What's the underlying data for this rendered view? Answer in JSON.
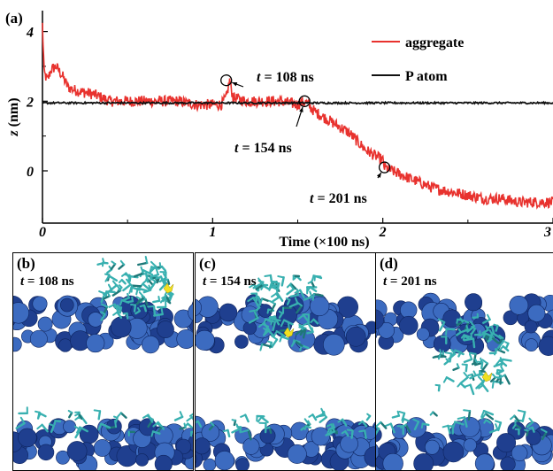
{
  "figure": {
    "panel_a_label": "(a)",
    "panels": [
      {
        "label": "(b)",
        "t_label": "t",
        "t_text": " = 108 ns"
      },
      {
        "label": "(c)",
        "t_label": "t",
        "t_text": " = 154 ns"
      },
      {
        "label": "(d)",
        "t_label": "t",
        "t_text": " = 201 ns"
      }
    ]
  },
  "chart_data": {
    "type": "line",
    "xlabel": "Time (×100 ns)",
    "ylabel_var": "z",
    "ylabel_unit": " (nm)",
    "xlim": [
      0,
      3
    ],
    "ylim": [
      -1.5,
      4.6
    ],
    "xticks": [
      0,
      1,
      2,
      3
    ],
    "yticks": [
      0,
      2,
      4
    ],
    "grid": false,
    "legend_position": "top-right",
    "series": [
      {
        "name": "aggregate",
        "color": "#e8322e",
        "x": [
          0,
          0.01,
          0.03,
          0.05,
          0.08,
          0.12,
          0.15,
          0.2,
          0.3,
          0.4,
          0.5,
          0.6,
          0.7,
          0.8,
          0.9,
          1.0,
          1.05,
          1.08,
          1.1,
          1.12,
          1.2,
          1.3,
          1.4,
          1.5,
          1.54,
          1.6,
          1.7,
          1.8,
          1.9,
          2.0,
          2.01,
          2.1,
          2.2,
          2.3,
          2.4,
          2.5,
          2.6,
          2.7,
          2.8,
          2.9,
          3.0
        ],
        "y": [
          4.2,
          2.8,
          2.6,
          2.9,
          3.0,
          2.7,
          2.4,
          2.3,
          2.2,
          2.0,
          2.0,
          2.0,
          2.0,
          2.0,
          1.9,
          1.9,
          1.9,
          2.1,
          2.6,
          2.1,
          2.0,
          2.0,
          2.0,
          1.9,
          2.0,
          1.7,
          1.4,
          1.1,
          0.6,
          0.3,
          0.1,
          -0.1,
          -0.3,
          -0.5,
          -0.6,
          -0.7,
          -0.8,
          -0.8,
          -0.9,
          -0.9,
          -0.9
        ]
      },
      {
        "name": "P atom",
        "color": "#111111",
        "x": [
          0,
          3
        ],
        "y": [
          1.95,
          1.95
        ]
      }
    ],
    "annotations": [
      {
        "t_label": "t",
        "text": " = 108 ns",
        "x": 1.08,
        "y": 2.6
      },
      {
        "t_label": "t",
        "text": " = 154 ns",
        "x": 1.54,
        "y": 2.0
      },
      {
        "t_label": "t",
        "text": " = 201 ns",
        "x": 2.01,
        "y": 0.1
      }
    ]
  },
  "colors": {
    "membrane_dark": "#1f3f8f",
    "membrane_light": "#3c6bc0",
    "molecule": "#38b0b0",
    "molecule_dark": "#1e7878",
    "phosphorus": "#f0e020"
  }
}
